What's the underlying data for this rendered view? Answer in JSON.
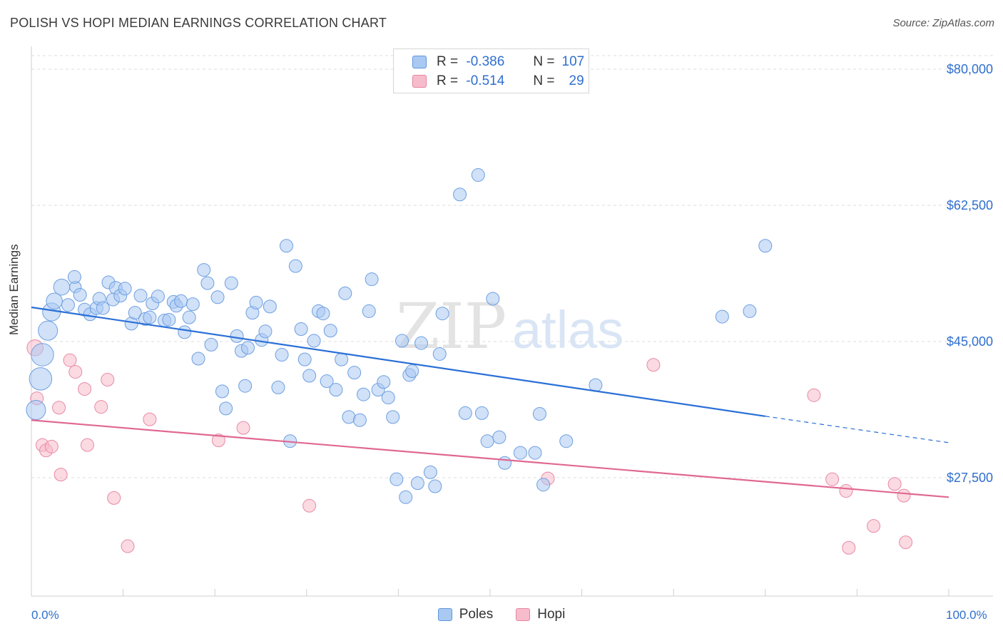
{
  "header": {
    "title": "POLISH VS HOPI MEDIAN EARNINGS CORRELATION CHART",
    "source": "Source: ZipAtlas.com"
  },
  "legend": {
    "series": [
      {
        "name": "Poles",
        "r_label": "R =",
        "r_value": "-0.386",
        "n_label": "N =",
        "n_value": "107",
        "color": "#a9c9f2",
        "stroke": "#5f95dc"
      },
      {
        "name": "Hopi",
        "r_label": "R =",
        "r_value": "-0.514",
        "n_label": "N =",
        "n_value": "29",
        "color": "#f7bccb",
        "stroke": "#e683a0"
      }
    ]
  },
  "colors": {
    "poles_line": "#2a6fd6",
    "hopi_line": "#e06892",
    "axis_text": "#2f6fd0",
    "grid": "#dedede"
  },
  "watermark": {
    "part1": "ZIP",
    "part2": "atlas"
  },
  "chart_data": {
    "type": "scatter",
    "ylabel": "Median Earnings",
    "xlabel": "",
    "x_tick_labels": [
      "0.0%",
      "100.0%"
    ],
    "y_ticks": [
      27500,
      45000,
      62500,
      80000
    ],
    "y_tick_labels": [
      "$27,500",
      "$45,000",
      "$62,500",
      "$80,000"
    ],
    "xlim": [
      0,
      100
    ],
    "ylim": [
      10000,
      83500
    ],
    "grid": "horizontal dashed",
    "series": [
      {
        "name": "Poles",
        "trend": {
          "x0": 0,
          "y0": 49400,
          "x1": 80,
          "y1": 35400,
          "dash_to_x": 100,
          "dash_to_y": 32000
        },
        "points": [
          [
            0.5,
            36200,
            3
          ],
          [
            1,
            40200,
            3.5
          ],
          [
            1.2,
            43300,
            3.5
          ],
          [
            1.8,
            46400,
            3
          ],
          [
            2.2,
            48800,
            2.8
          ],
          [
            2.5,
            50200,
            2.5
          ],
          [
            3.3,
            52000,
            2.5
          ],
          [
            4,
            49700,
            2
          ],
          [
            4.8,
            52000,
            1.8
          ],
          [
            4.7,
            53300,
            1.5
          ],
          [
            5.3,
            51000,
            1.5
          ],
          [
            5.8,
            49100,
            1.5
          ],
          [
            6.4,
            48500,
            1.5
          ],
          [
            7.1,
            49300,
            1.5
          ],
          [
            7.4,
            50500,
            1.5
          ],
          [
            7.8,
            49300,
            1.5
          ],
          [
            8.4,
            52600,
            1.5
          ],
          [
            8.9,
            50400,
            1.5
          ],
          [
            9.2,
            51900,
            1.5
          ],
          [
            9.7,
            50900,
            1.5
          ],
          [
            10.2,
            51800,
            1.5
          ],
          [
            10.9,
            47300,
            1.5
          ],
          [
            11.3,
            48700,
            1.5
          ],
          [
            11.9,
            50900,
            1.5
          ],
          [
            12.4,
            47900,
            1.5
          ],
          [
            12.9,
            48100,
            1.5
          ],
          [
            13.2,
            49900,
            1.5
          ],
          [
            13.8,
            50800,
            1.5
          ],
          [
            14.5,
            47700,
            1.5
          ],
          [
            15,
            47800,
            1.5
          ],
          [
            15.5,
            50100,
            1.5
          ],
          [
            15.8,
            49600,
            1.5
          ],
          [
            16.3,
            50200,
            1.5
          ],
          [
            16.7,
            46200,
            1.5
          ],
          [
            17.2,
            48100,
            1.5
          ],
          [
            17.6,
            49800,
            1.5
          ],
          [
            18.2,
            42800,
            1.5
          ],
          [
            18.8,
            54200,
            1.5
          ],
          [
            19.2,
            52500,
            1.5
          ],
          [
            19.6,
            44600,
            1.5
          ],
          [
            20.3,
            50700,
            1.5
          ],
          [
            20.8,
            38600,
            1.5
          ],
          [
            21.2,
            36400,
            1.5
          ],
          [
            21.8,
            52500,
            1.5
          ],
          [
            22.4,
            45700,
            1.5
          ],
          [
            22.9,
            43800,
            1.5
          ],
          [
            23.3,
            39300,
            1.5
          ],
          [
            23.6,
            44200,
            1.5
          ],
          [
            24.1,
            48700,
            1.5
          ],
          [
            24.5,
            50000,
            1.5
          ],
          [
            25.1,
            45200,
            1.5
          ],
          [
            25.5,
            46300,
            1.5
          ],
          [
            26,
            49500,
            1.5
          ],
          [
            26.9,
            39100,
            1.5
          ],
          [
            27.3,
            43300,
            1.5
          ],
          [
            27.8,
            57300,
            1.5
          ],
          [
            28.2,
            32200,
            1.5
          ],
          [
            28.8,
            54700,
            1.5
          ],
          [
            29.4,
            46600,
            1.5
          ],
          [
            29.8,
            42700,
            1.5
          ],
          [
            30.3,
            40600,
            1.5
          ],
          [
            30.8,
            45100,
            1.5
          ],
          [
            31.3,
            48900,
            1.5
          ],
          [
            31.8,
            48600,
            1.5
          ],
          [
            32.2,
            39900,
            1.5
          ],
          [
            32.6,
            46400,
            1.5
          ],
          [
            33.2,
            38800,
            1.5
          ],
          [
            33.8,
            42700,
            1.5
          ],
          [
            34.2,
            51200,
            1.5
          ],
          [
            34.6,
            35300,
            1.5
          ],
          [
            35.2,
            41000,
            1.5
          ],
          [
            35.8,
            34900,
            1.5
          ],
          [
            36.2,
            38200,
            1.5
          ],
          [
            36.8,
            48900,
            1.5
          ],
          [
            37.1,
            53000,
            1.5
          ],
          [
            37.8,
            38800,
            1.5
          ],
          [
            38.4,
            39800,
            1.5
          ],
          [
            38.9,
            37800,
            1.5
          ],
          [
            39.4,
            35300,
            1.5
          ],
          [
            39.8,
            27300,
            1.5
          ],
          [
            40.4,
            45100,
            1.5
          ],
          [
            40.8,
            25000,
            1.5
          ],
          [
            41.2,
            40700,
            1.5
          ],
          [
            41.5,
            41200,
            1.5
          ],
          [
            42.1,
            26800,
            1.5
          ],
          [
            42.5,
            44800,
            1.5
          ],
          [
            43.5,
            28200,
            1.5
          ],
          [
            44,
            26400,
            1.5
          ],
          [
            44.5,
            43400,
            1.5
          ],
          [
            44.8,
            48600,
            1.5
          ],
          [
            46.7,
            63900,
            1.5
          ],
          [
            47.3,
            35800,
            1.5
          ],
          [
            48.7,
            66400,
            1.5
          ],
          [
            49.1,
            35800,
            1.5
          ],
          [
            49.7,
            32200,
            1.5
          ],
          [
            50.3,
            50500,
            1.5
          ],
          [
            51,
            32700,
            1.5
          ],
          [
            51.6,
            29400,
            1.5
          ],
          [
            53.3,
            30700,
            1.5
          ],
          [
            54.9,
            30700,
            1.5
          ],
          [
            55.4,
            35700,
            1.5
          ],
          [
            55.8,
            26600,
            1.5
          ],
          [
            58.3,
            32200,
            1.5
          ],
          [
            61.5,
            39400,
            1.5
          ],
          [
            75.3,
            48200,
            1.5
          ],
          [
            78.3,
            48900,
            1.5
          ],
          [
            80,
            57300,
            1.5
          ]
        ]
      },
      {
        "name": "Hopi",
        "trend": {
          "x0": 0,
          "y0": 34900,
          "x1": 100,
          "y1": 25000
        },
        "points": [
          [
            0.4,
            44200,
            2.5
          ],
          [
            0.6,
            37700,
            2
          ],
          [
            1.2,
            31700,
            1.5
          ],
          [
            1.6,
            31000,
            1.5
          ],
          [
            2.2,
            31500,
            1.5
          ],
          [
            3,
            36500,
            1.5
          ],
          [
            3.2,
            27900,
            1.5
          ],
          [
            4.2,
            42600,
            1.5
          ],
          [
            4.8,
            41100,
            1.5
          ],
          [
            5.8,
            38900,
            1.5
          ],
          [
            6.1,
            31700,
            1.5
          ],
          [
            7.6,
            36600,
            1.5
          ],
          [
            8.3,
            40100,
            1.5
          ],
          [
            9,
            24900,
            1.5
          ],
          [
            10.5,
            18700,
            1.5
          ],
          [
            12.9,
            35000,
            1.5
          ],
          [
            20.4,
            32300,
            1.5
          ],
          [
            23.1,
            33900,
            1.5
          ],
          [
            30.3,
            23900,
            1.5
          ],
          [
            56.3,
            27400,
            1.5
          ],
          [
            67.8,
            42000,
            1.5
          ],
          [
            85.3,
            38100,
            1.5
          ],
          [
            87.3,
            27300,
            1.5
          ],
          [
            88.8,
            25800,
            1.5
          ],
          [
            89.1,
            18500,
            1.5
          ],
          [
            91.8,
            21300,
            1.5
          ],
          [
            94.1,
            26700,
            1.5
          ],
          [
            95.1,
            25200,
            1.5
          ],
          [
            95.3,
            19200,
            1.5
          ]
        ]
      }
    ]
  }
}
